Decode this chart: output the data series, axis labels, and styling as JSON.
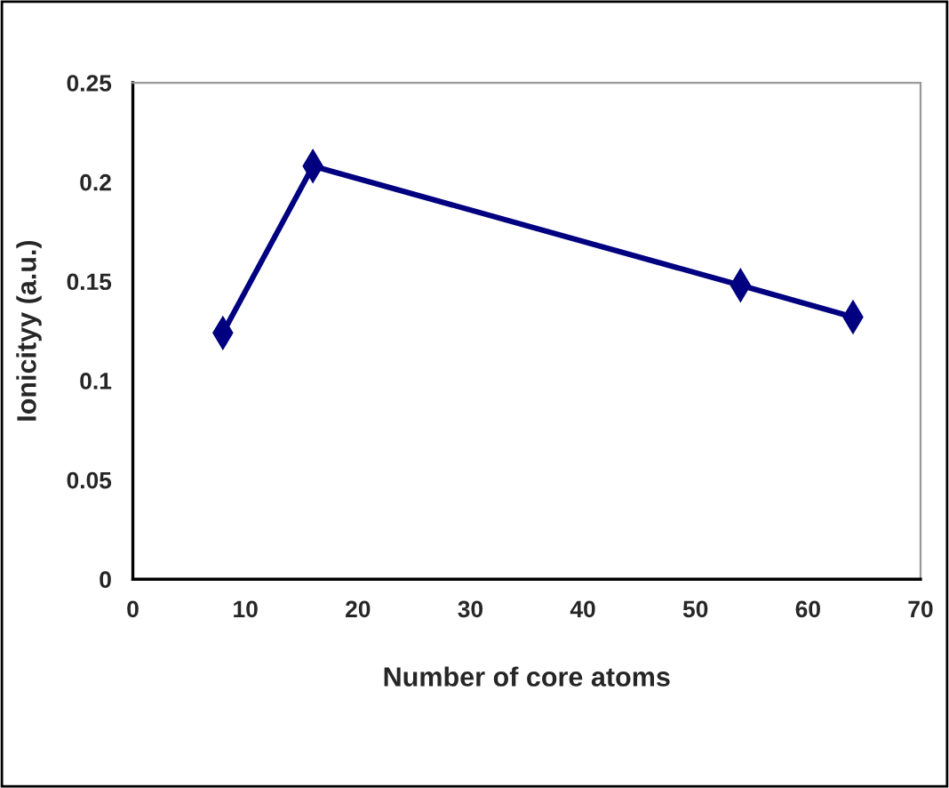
{
  "chart_data": {
    "type": "line",
    "xlabel": "Number of core atoms",
    "ylabel": "Ionicityy (a.u.)",
    "x": [
      8,
      16,
      54,
      64
    ],
    "series": [
      {
        "color": "#000080",
        "values": [
          0.124,
          0.208,
          0.148,
          0.132
        ]
      }
    ],
    "xlim": [
      0,
      70
    ],
    "xticks": [
      0,
      10,
      20,
      30,
      40,
      50,
      60,
      70
    ],
    "ylim": [
      0,
      0.25
    ],
    "yticks": [
      0,
      0.05,
      0.1,
      0.15,
      0.2,
      0.25
    ],
    "marker": "diamond",
    "line_style": "solid",
    "grid": false
  }
}
